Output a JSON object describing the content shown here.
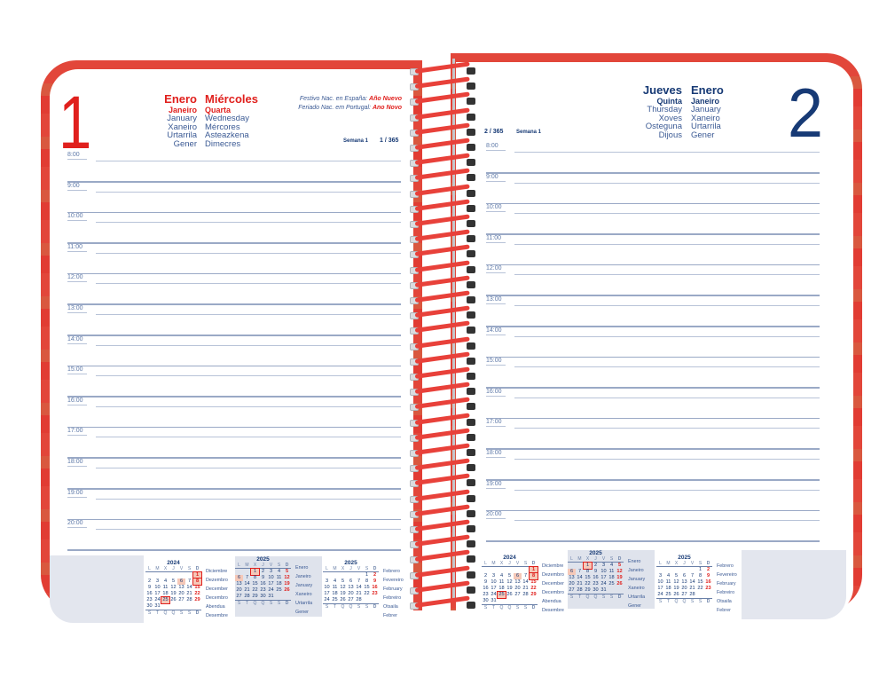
{
  "left_page": {
    "day_number": "1",
    "month": {
      "es": "Enero",
      "pt": "Janeiro",
      "en": "January",
      "gl": "Xaneiro",
      "eu": "Urtarrila",
      "ca": "Gener"
    },
    "weekday": {
      "es": "Miércoles",
      "pt": "Quarta",
      "en": "Wednesday",
      "gl": "Mércores",
      "eu": "Asteazkena",
      "ca": "Dimecres"
    },
    "holidays": {
      "spain_label": "Festivo Nac. en España:",
      "spain_value": "Año Nuevo",
      "portugal_label": "Feriado Nac. em Portugal:",
      "portugal_value": "Ano Novo"
    },
    "week": "Semana 1",
    "day_of_year": "1 / 365",
    "hours": [
      "8:00",
      "9:00",
      "10:00",
      "11:00",
      "12:00",
      "13:00",
      "14:00",
      "15:00",
      "16:00",
      "17:00",
      "18:00",
      "19:00",
      "20:00"
    ]
  },
  "right_page": {
    "day_number": "2",
    "month": {
      "es": "Enero",
      "pt": "Janeiro",
      "en": "January",
      "gl": "Xaneiro",
      "eu": "Urtarrila",
      "ca": "Gener"
    },
    "weekday": {
      "es": "Jueves",
      "pt": "Quinta",
      "en": "Thursday",
      "gl": "Xoves",
      "eu": "Osteguna",
      "ca": "Dijous"
    },
    "week": "Semana 1",
    "day_of_year": "2 / 365",
    "hours": [
      "8:00",
      "9:00",
      "10:00",
      "11:00",
      "12:00",
      "13:00",
      "14:00",
      "15:00",
      "16:00",
      "17:00",
      "18:00",
      "19:00",
      "20:00"
    ]
  },
  "mini_calendars": {
    "header_days": [
      "L",
      "M",
      "X",
      "J",
      "V",
      "S",
      "D"
    ],
    "footer_days": [
      "S",
      "T",
      "Q",
      "Q",
      "S",
      "S",
      "D"
    ],
    "december_2024": {
      "year": "2024",
      "month_names": [
        "Diciembre",
        "Dezembro",
        "December",
        "Decembro",
        "Abendua",
        "Desembre"
      ],
      "weeks": [
        [
          "",
          "",
          "",
          "",
          "",
          "",
          "1"
        ],
        [
          "2",
          "3",
          "4",
          "5",
          "6",
          "7",
          "8"
        ],
        [
          "9",
          "10",
          "11",
          "12",
          "13",
          "14",
          "15"
        ],
        [
          "16",
          "17",
          "18",
          "19",
          "20",
          "21",
          "22"
        ],
        [
          "23",
          "24",
          "25",
          "26",
          "27",
          "28",
          "29"
        ],
        [
          "30",
          "31",
          "",
          "",
          "",
          "",
          ""
        ]
      ]
    },
    "january_2025": {
      "year": "2025",
      "month_names": [
        "Enero",
        "Janeiro",
        "January",
        "Xaneiro",
        "Urtarrila",
        "Gener"
      ],
      "weeks": [
        [
          "",
          "",
          "1",
          "2",
          "3",
          "4",
          "5"
        ],
        [
          "6",
          "7",
          "8",
          "9",
          "10",
          "11",
          "12"
        ],
        [
          "13",
          "14",
          "15",
          "16",
          "17",
          "18",
          "19"
        ],
        [
          "20",
          "21",
          "22",
          "23",
          "24",
          "25",
          "26"
        ],
        [
          "27",
          "28",
          "29",
          "30",
          "31",
          "",
          ""
        ]
      ]
    },
    "february_2025": {
      "year": "2025",
      "month_names": [
        "Febrero",
        "Fevereiro",
        "February",
        "Febreiro",
        "Otsaila",
        "Febrer"
      ],
      "weeks": [
        [
          "",
          "",
          "",
          "",
          "",
          "1",
          "2"
        ],
        [
          "3",
          "4",
          "5",
          "6",
          "7",
          "8",
          "9"
        ],
        [
          "10",
          "11",
          "12",
          "13",
          "14",
          "15",
          "16"
        ],
        [
          "17",
          "18",
          "19",
          "20",
          "21",
          "22",
          "23"
        ],
        [
          "24",
          "25",
          "26",
          "27",
          "28",
          "",
          ""
        ]
      ]
    }
  },
  "colors": {
    "accent_red": "#e0201d",
    "navy": "#173a75",
    "cover_red": "#e2463a",
    "line_blue": "#b8c3d8",
    "panel_gray": "#e3e6ee"
  }
}
